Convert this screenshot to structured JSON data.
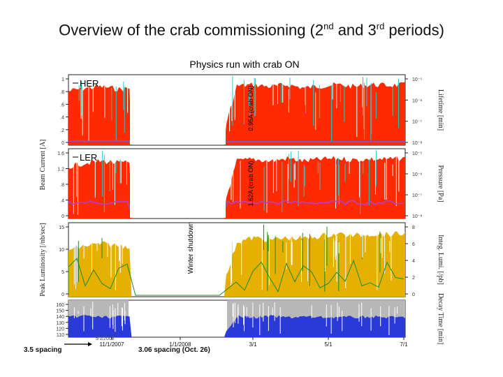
{
  "slide": {
    "title_pre": "Overview of the crab commissioning (2",
    "title_sup1": "nd",
    "title_mid": " and 3",
    "title_sup2": "rd",
    "title_post": " periods)"
  },
  "chart_data": {
    "type": "area",
    "title": "Physics run with crab ON",
    "x_ticks": [
      "11/1/2007",
      "1/1/2008",
      "3/1",
      "5/1",
      "7/1"
    ],
    "x_tick_upper_label": "5/1/2008",
    "winter_shutdown_label": "Winter shutdown",
    "annotations": {
      "spacing_left": "3.5 spacing",
      "spacing_mid": "3.06 spacing (Oct. 26)",
      "her_crab_current": "0.95A (crab ON)",
      "ler_crab_current": "1.62A (crab ON)"
    },
    "panels": [
      {
        "id": "her",
        "name": "HER",
        "ylabel_left": "Beam Current [A]",
        "ylabel_right": "Lifetime [min]",
        "y_ticks_left": [
          "1",
          ".8",
          ".6",
          ".4",
          ".2",
          "0"
        ],
        "y_ticks_right": [
          "10⁻⁵",
          "10⁻⁶",
          "10⁻⁷",
          "10⁻⁸"
        ],
        "series": [
          {
            "name": "HER",
            "color": "#ff2a00",
            "values": [
              0.85,
              0.9,
              0.92,
              0.88,
              0.9,
              0.0,
              0.0,
              0.0,
              0.0,
              0.0,
              0.93,
              0.95,
              0.92,
              0.95,
              0.9,
              0.93,
              0.95,
              0.92,
              0.95,
              0.94,
              0.95
            ]
          }
        ]
      },
      {
        "id": "ler",
        "name": "LER",
        "ylabel_left": "",
        "ylabel_right": "Pressure [Pa]",
        "y_ticks_left": [
          "1.6",
          "1.2",
          ".8",
          ".4",
          "0"
        ],
        "y_ticks_right": [
          "10⁻⁵",
          "10⁻⁶",
          "10⁻⁷",
          "10⁻⁸"
        ],
        "series": [
          {
            "name": "LER",
            "color": "#ff2a00",
            "values": [
              1.4,
              1.5,
              1.55,
              1.5,
              1.5,
              0.0,
              0.0,
              0.0,
              0.0,
              0.0,
              1.55,
              1.6,
              1.55,
              1.62,
              1.55,
              1.6,
              1.62,
              1.58,
              1.6,
              1.6,
              1.62
            ]
          }
        ]
      },
      {
        "id": "lumi",
        "name": "",
        "ylabel_left": "Peak Luminosity [/nb/sec]",
        "ylabel_right": "Integ. Lumi. [/pb]",
        "y_ticks_left": [
          "15",
          "10",
          "5",
          "0"
        ],
        "y_ticks_right": [
          "8",
          "6",
          "4",
          "2",
          "0"
        ],
        "series": [
          {
            "name": "",
            "color": "#e6b000",
            "values": [
              12,
              13,
              13.5,
              13,
              13,
              0,
              0,
              0,
              0,
              0,
              14,
              15,
              14.5,
              15,
              14.8,
              15.5,
              16,
              15.5,
              16,
              15.8,
              16
            ]
          }
        ]
      },
      {
        "id": "rate",
        "name": "",
        "ylabel_left": "",
        "ylabel_right": "Decay Time [min]",
        "y_ticks_left": [
          "160",
          "150",
          "140",
          "130",
          "120",
          "110"
        ],
        "y_ticks_right": [],
        "series": [
          {
            "name": "",
            "color": "#2a3ad8",
            "values": [
              0.6,
              0.65,
              0.6,
              0.62,
              0.6,
              0.0,
              0.0,
              0.0,
              0.0,
              0.0,
              0.62,
              0.6,
              0.63,
              0.6,
              0.62,
              0.6,
              0.61,
              0.6,
              0.62,
              0.6,
              0.6
            ]
          }
        ]
      }
    ],
    "colors": {
      "her_fill": "#ff2a00",
      "ler_fill": "#ff2a00",
      "cyan_spikes": "#22cbc6",
      "lumi_fill": "#e6b000",
      "integ_lumi_line": "#1a8c1a",
      "rate_fill": "#2a3ad8",
      "rate_bg": "#b8b8b8",
      "lifetime_line": "#6060ff",
      "pressure_line": "#b040d0"
    }
  }
}
